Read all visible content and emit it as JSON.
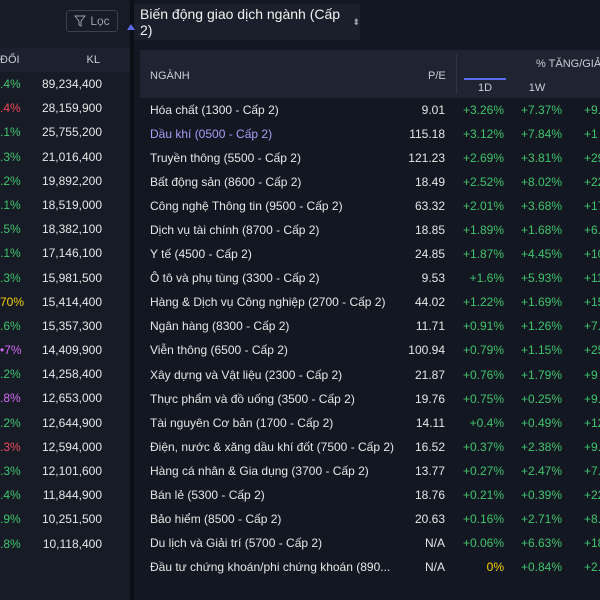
{
  "left_panel": {
    "filter_label": "Lọc",
    "col_change": "ĐỔI",
    "col_volume": "KL",
    "rows": [
      {
        "chg": ".4%",
        "vol": "89,234,400",
        "cls": "up"
      },
      {
        "chg": ".4%",
        "vol": "28,159,900",
        "cls": "down"
      },
      {
        "chg": ".1%",
        "vol": "25,755,200",
        "cls": "up"
      },
      {
        "chg": ".3%",
        "vol": "21,016,400",
        "cls": "up"
      },
      {
        "chg": ".2%",
        "vol": "19,892,200",
        "cls": "up"
      },
      {
        "chg": ".1%",
        "vol": "18,519,000",
        "cls": "up"
      },
      {
        "chg": ".5%",
        "vol": "18,382,100",
        "cls": "up"
      },
      {
        "chg": ".1%",
        "vol": "17,146,100",
        "cls": "up"
      },
      {
        "chg": ".3%",
        "vol": "15,981,500",
        "cls": "up"
      },
      {
        "chg": "70%",
        "vol": "15,414,400",
        "cls": "ref"
      },
      {
        "chg": ".6%",
        "vol": "15,357,300",
        "cls": "up"
      },
      {
        "chg": "•7%",
        "vol": "14,409,900",
        "cls": "ceil"
      },
      {
        "chg": ".2%",
        "vol": "14,258,400",
        "cls": "up"
      },
      {
        "chg": ".8%",
        "vol": "12,653,000",
        "cls": "ceil"
      },
      {
        "chg": ".2%",
        "vol": "12,644,900",
        "cls": "up"
      },
      {
        "chg": ".3%",
        "vol": "12,594,000",
        "cls": "down"
      },
      {
        "chg": ".3%",
        "vol": "12,101,600",
        "cls": "up"
      },
      {
        "chg": ".4%",
        "vol": "11,844,900",
        "cls": "up"
      },
      {
        "chg": ".9%",
        "vol": "10,251,500",
        "cls": "up"
      },
      {
        "chg": ".8%",
        "vol": "10,118,400",
        "cls": "up"
      }
    ]
  },
  "header": {
    "title": "Biến động giao dịch ngành (Cấp 2)",
    "caret": "⬍"
  },
  "table": {
    "col_sector": "NGÀNH",
    "col_pe": "P/E",
    "col_pct": "% TĂNG/GIẢM",
    "col_1d": "1D",
    "col_1w": "1W",
    "rows": [
      {
        "name": "Hóa chất (1300 - Cấp 2)",
        "pe": "9.01",
        "d1": "+3.26%",
        "w1": "+7.37%",
        "m1": "+9.",
        "sel": false
      },
      {
        "name": "Dầu khí (0500 - Cấp 2)",
        "pe": "115.18",
        "d1": "+3.12%",
        "w1": "+7.84%",
        "m1": "+1",
        "sel": true
      },
      {
        "name": "Truyền thông (5500 - Cấp 2)",
        "pe": "121.23",
        "d1": "+2.69%",
        "w1": "+3.81%",
        "m1": "+29",
        "sel": false
      },
      {
        "name": "Bất động sản (8600 - Cấp 2)",
        "pe": "18.49",
        "d1": "+2.52%",
        "w1": "+8.02%",
        "m1": "+22",
        "sel": false
      },
      {
        "name": "Công nghệ Thông tin (9500 - Cấp 2)",
        "pe": "63.32",
        "d1": "+2.01%",
        "w1": "+3.68%",
        "m1": "+17",
        "sel": false
      },
      {
        "name": "Dịch vụ tài chính (8700 - Cấp 2)",
        "pe": "18.85",
        "d1": "+1.89%",
        "w1": "+1.68%",
        "m1": "+6.",
        "sel": false
      },
      {
        "name": "Y tế (4500 - Cấp 2)",
        "pe": "24.85",
        "d1": "+1.87%",
        "w1": "+4.45%",
        "m1": "+10",
        "sel": false
      },
      {
        "name": "Ô tô và phụ tùng (3300 - Cấp 2)",
        "pe": "9.53",
        "d1": "+1.6%",
        "w1": "+5.93%",
        "m1": "+11",
        "sel": false
      },
      {
        "name": "Hàng & Dịch vụ Công nghiệp (2700 - Cấp 2)",
        "pe": "44.02",
        "d1": "+1.22%",
        "w1": "+1.69%",
        "m1": "+15",
        "sel": false
      },
      {
        "name": "Ngân hàng (8300 - Cấp 2)",
        "pe": "11.71",
        "d1": "+0.91%",
        "w1": "+1.26%",
        "m1": "+7.",
        "sel": false
      },
      {
        "name": "Viễn thông (6500 - Cấp 2)",
        "pe": "100.94",
        "d1": "+0.79%",
        "w1": "+1.15%",
        "m1": "+25",
        "sel": false
      },
      {
        "name": "Xây dựng và Vật liệu (2300 - Cấp 2)",
        "pe": "21.87",
        "d1": "+0.76%",
        "w1": "+1.79%",
        "m1": "+9",
        "sel": false
      },
      {
        "name": "Thực phẩm và đồ uống (3500 - Cấp 2)",
        "pe": "19.76",
        "d1": "+0.75%",
        "w1": "+0.25%",
        "m1": "+9.",
        "sel": false
      },
      {
        "name": "Tài nguyên Cơ bản (1700 - Cấp 2)",
        "pe": "14.11",
        "d1": "+0.4%",
        "w1": "+0.49%",
        "m1": "+12",
        "sel": false
      },
      {
        "name": "Điện, nước & xăng dầu khí đốt (7500 - Cấp 2)",
        "pe": "16.52",
        "d1": "+0.37%",
        "w1": "+2.38%",
        "m1": "+9.",
        "sel": false
      },
      {
        "name": "Hàng cá nhân & Gia dụng (3700 - Cấp 2)",
        "pe": "13.77",
        "d1": "+0.27%",
        "w1": "+2.47%",
        "m1": "+7.",
        "sel": false
      },
      {
        "name": "Bán lẻ (5300 - Cấp 2)",
        "pe": "18.76",
        "d1": "+0.21%",
        "w1": "+0.39%",
        "m1": "+22",
        "sel": false
      },
      {
        "name": "Bảo hiểm (8500 - Cấp 2)",
        "pe": "20.63",
        "d1": "+0.16%",
        "w1": "+2.71%",
        "m1": "+8.",
        "sel": false
      },
      {
        "name": "Du lịch và Giải trí (5700 - Cấp 2)",
        "pe": "N/A",
        "d1": "+0.06%",
        "w1": "+6.63%",
        "m1": "+18",
        "sel": false
      },
      {
        "name": "Đầu tư chứng khoán/phi chứng khoán (890...",
        "pe": "N/A",
        "d1": "0%",
        "w1": "+0.84%",
        "m1": "+2.",
        "sel": false,
        "d1_ref": true
      }
    ]
  }
}
